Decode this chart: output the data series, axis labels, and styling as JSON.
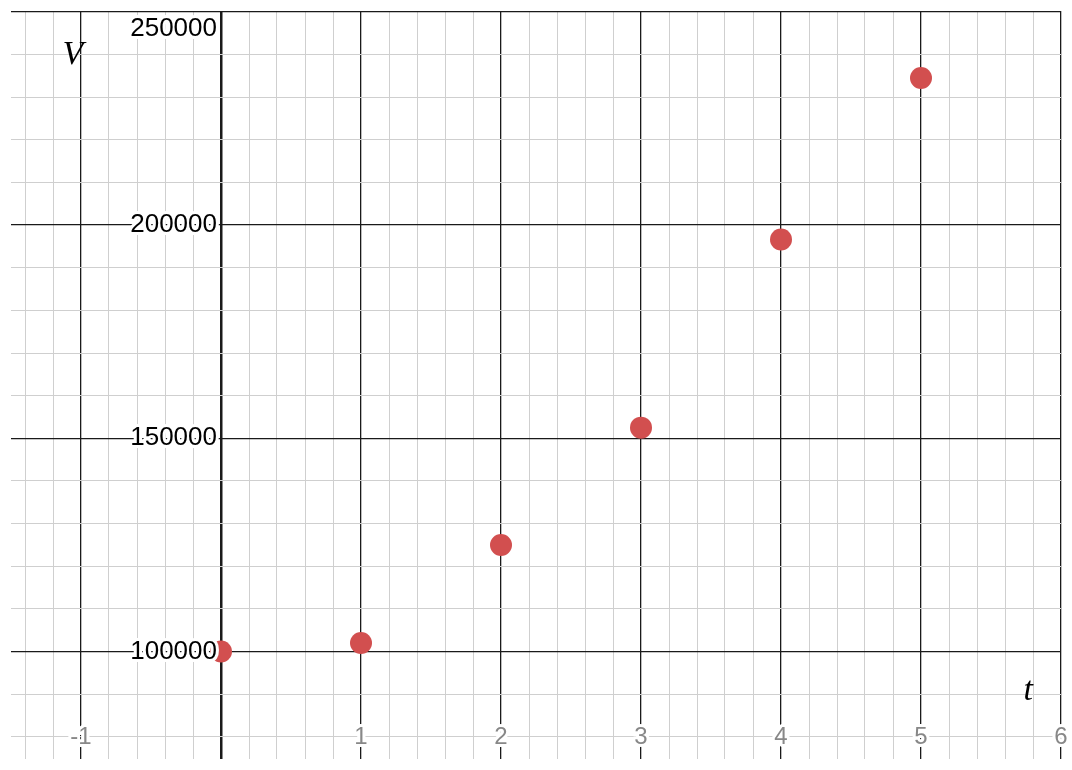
{
  "chart_data": {
    "type": "scatter",
    "xlabel": "t",
    "ylabel": "V",
    "x": [
      0,
      1,
      2,
      3,
      4,
      5
    ],
    "series": [
      {
        "color": "#d24f4f",
        "values": [
          100000,
          102000,
          125000,
          152500,
          196600,
          234500
        ]
      }
    ],
    "marker": "circle",
    "legend": false,
    "grid": true,
    "xlim": [
      -1.5,
      6
    ],
    "ylim": [
      74800,
      250200
    ],
    "xticks": [
      {
        "value": -1.4,
        "label": null
      },
      {
        "value": -1.2,
        "label": null
      },
      -1,
      {
        "value": -0.8,
        "label": null
      },
      {
        "value": -0.6,
        "label": null
      },
      {
        "value": -0.4,
        "label": null
      },
      {
        "value": -0.2,
        "label": null
      },
      {
        "value": 0,
        "label": null
      },
      {
        "value": 0.2,
        "label": null
      },
      {
        "value": 0.4,
        "label": null
      },
      {
        "value": 0.6,
        "label": null
      },
      {
        "value": 0.8,
        "label": null
      },
      1,
      {
        "value": 1.2,
        "label": null
      },
      {
        "value": 1.4,
        "label": null
      },
      {
        "value": 1.6,
        "label": null
      },
      {
        "value": 1.8,
        "label": null
      },
      2,
      {
        "value": 2.2,
        "label": null
      },
      {
        "value": 2.4,
        "label": null
      },
      {
        "value": 2.6,
        "label": null
      },
      {
        "value": 2.8,
        "label": null
      },
      3,
      {
        "value": 3.2,
        "label": null
      },
      {
        "value": 3.4,
        "label": null
      },
      {
        "value": 3.6,
        "label": null
      },
      {
        "value": 3.8,
        "label": null
      },
      4,
      {
        "value": 4.2,
        "label": null
      },
      {
        "value": 4.4,
        "label": null
      },
      {
        "value": 4.6,
        "label": null
      },
      {
        "value": 4.8,
        "label": null
      },
      5,
      {
        "value": 5.2,
        "label": null
      },
      {
        "value": 5.4,
        "label": null
      },
      {
        "value": 5.6,
        "label": null
      },
      {
        "value": 5.8,
        "label": null
      },
      6
    ],
    "yticks": [
      {
        "value": 80000,
        "label": null
      },
      {
        "value": 90000,
        "label": null
      },
      100000,
      {
        "value": 110000,
        "label": null
      },
      {
        "value": 120000,
        "label": null
      },
      {
        "value": 130000,
        "label": null
      },
      {
        "value": 140000,
        "label": null
      },
      150000,
      {
        "value": 160000,
        "label": null
      },
      {
        "value": 170000,
        "label": null
      },
      {
        "value": 180000,
        "label": null
      },
      {
        "value": 190000,
        "label": null
      },
      200000,
      {
        "value": 210000,
        "label": null
      },
      {
        "value": 220000,
        "label": null
      },
      {
        "value": 230000,
        "label": null
      },
      {
        "value": 240000,
        "label": null
      },
      250000
    ]
  }
}
